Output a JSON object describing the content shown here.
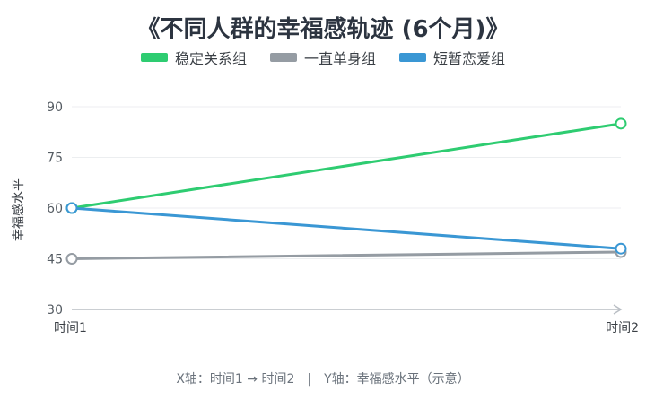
{
  "title": "《不同人群的幸福感轨迹 (6个月)》",
  "colors": {
    "stable": "#2ecc71",
    "single": "#959ca3",
    "shortTerm": "#3a97d4",
    "axis": "#b9bec4",
    "grid": "#eceef0",
    "tickText": "#555c63"
  },
  "footer": {
    "x_note": "X轴：时间1 → 时间2",
    "separator": "|",
    "y_note": "Y轴：幸福感水平（示意）"
  },
  "chart_data": {
    "type": "line",
    "title": "《不同人群的幸福感轨迹 (6个月)》",
    "xlabel": "",
    "ylabel": "幸福感水平",
    "categories": [
      "时间1",
      "时间2"
    ],
    "ylim": [
      30,
      90
    ],
    "yticks": [
      30,
      45,
      60,
      75,
      90
    ],
    "grid": true,
    "legend_position": "top-center",
    "series": [
      {
        "name": "稳定关系组",
        "color": "#2ecc71",
        "values": [
          60,
          85
        ]
      },
      {
        "name": "一直单身组",
        "color": "#959ca3",
        "values": [
          45,
          47
        ]
      },
      {
        "name": "短暂恋爱组",
        "color": "#3a97d4",
        "values": [
          60,
          48
        ]
      }
    ]
  }
}
